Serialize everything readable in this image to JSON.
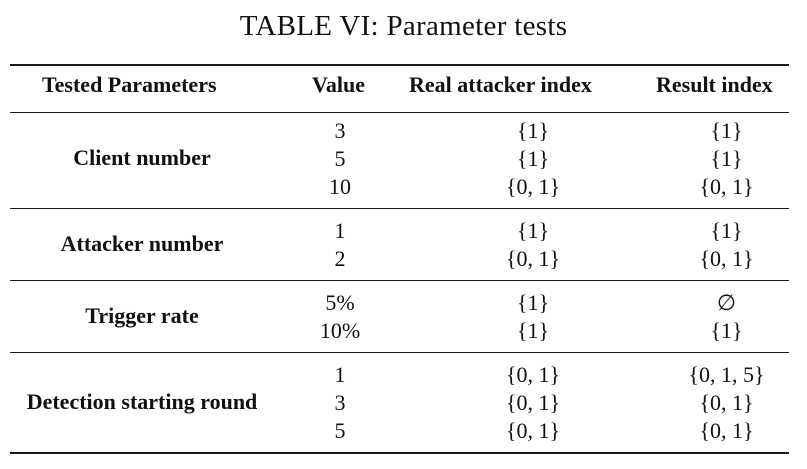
{
  "caption": "TABLE VI: Parameter tests",
  "headers": {
    "param": "Tested Parameters",
    "value": "Value",
    "real": "Real attacker index",
    "result": "Result index"
  },
  "groups": [
    {
      "name": "Client number",
      "rows": [
        {
          "value": "3",
          "real": "{1}",
          "result": "{1}"
        },
        {
          "value": "5",
          "real": "{1}",
          "result": "{1}"
        },
        {
          "value": "10",
          "real": "{0, 1}",
          "result": "{0, 1}"
        }
      ]
    },
    {
      "name": "Attacker number",
      "rows": [
        {
          "value": "1",
          "real": "{1}",
          "result": "{1}"
        },
        {
          "value": "2",
          "real": "{0, 1}",
          "result": "{0, 1}"
        }
      ]
    },
    {
      "name": "Trigger rate",
      "rows": [
        {
          "value": "5%",
          "real": "{1}",
          "result": "∅"
        },
        {
          "value": "10%",
          "real": "{1}",
          "result": "{1}"
        }
      ]
    },
    {
      "name": "Detection starting round",
      "rows": [
        {
          "value": "1",
          "real": "{0, 1}",
          "result": "{0, 1, 5}"
        },
        {
          "value": "3",
          "real": "{0, 1}",
          "result": "{0, 1}"
        },
        {
          "value": "5",
          "real": "{0, 1}",
          "result": "{0, 1}"
        }
      ]
    }
  ]
}
